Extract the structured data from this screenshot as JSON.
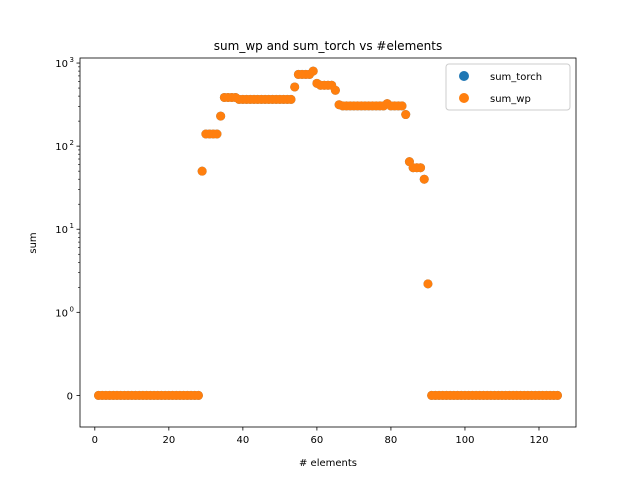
{
  "chart_data": {
    "type": "scatter",
    "title": "sum_wp and sum_torch vs #elements",
    "xlabel": "# elements",
    "ylabel": "sum",
    "xlim": [
      -4,
      130
    ],
    "ylim": [
      -0.38,
      1150
    ],
    "yscale": "symlog",
    "linthresh": 1,
    "x_ticks": [
      0,
      20,
      40,
      60,
      80,
      100,
      120
    ],
    "y_ticks": [
      {
        "value": 0,
        "label": "0"
      },
      {
        "value": 1,
        "label": "10",
        "exp": "0"
      },
      {
        "value": 10,
        "label": "10",
        "exp": "1"
      },
      {
        "value": 100,
        "label": "10",
        "exp": "2"
      },
      {
        "value": 1000,
        "label": "10",
        "exp": "3"
      }
    ],
    "grid": false,
    "legend": "top-right",
    "series": [
      {
        "name": "sum_torch",
        "color": "#1f77b4",
        "x": [
          1,
          2,
          3,
          4,
          5,
          6,
          7,
          8,
          9,
          10,
          11,
          12,
          13,
          14,
          15,
          16,
          17,
          18,
          19,
          20,
          21,
          22,
          23,
          24,
          25,
          26,
          27,
          28,
          29,
          30,
          31,
          32,
          33,
          34,
          35,
          36,
          37,
          38,
          39,
          40,
          41,
          42,
          43,
          44,
          45,
          46,
          47,
          48,
          49,
          50,
          51,
          52,
          53,
          54,
          55,
          56,
          57,
          58,
          59,
          60,
          61,
          62,
          63,
          64,
          65,
          66,
          67,
          68,
          69,
          70,
          71,
          72,
          73,
          74,
          75,
          76,
          77,
          78,
          79,
          80,
          81,
          82,
          83,
          84,
          85,
          86,
          87,
          88,
          89,
          90,
          91,
          92,
          93,
          94,
          95,
          96,
          97,
          98,
          99,
          100,
          101,
          102,
          103,
          104,
          105,
          106,
          107,
          108,
          109,
          110,
          111,
          112,
          113,
          114,
          115,
          116,
          117,
          118,
          119,
          120,
          121,
          122,
          123,
          124,
          125
        ],
        "y": [
          0,
          0,
          0,
          0,
          0,
          0,
          0,
          0,
          0,
          0,
          0,
          0,
          0,
          0,
          0,
          0,
          0,
          0,
          0,
          0,
          0,
          0,
          0,
          0,
          0,
          0,
          0,
          0,
          50,
          140,
          140,
          140,
          140,
          230,
          385,
          385,
          385,
          385,
          365,
          365,
          365,
          365,
          365,
          365,
          365,
          365,
          365,
          365,
          365,
          365,
          365,
          365,
          365,
          515,
          730,
          730,
          730,
          730,
          800,
          570,
          540,
          540,
          540,
          540,
          470,
          315,
          305,
          305,
          305,
          305,
          305,
          305,
          305,
          305,
          305,
          305,
          305,
          305,
          325,
          305,
          305,
          305,
          305,
          240,
          65,
          55,
          55,
          55,
          40,
          2.2,
          0,
          0,
          0,
          0,
          0,
          0,
          0,
          0,
          0,
          0,
          0,
          0,
          0,
          0,
          0,
          0,
          0,
          0,
          0,
          0,
          0,
          0,
          0,
          0,
          0,
          0,
          0,
          0,
          0,
          0,
          0,
          0,
          0,
          0,
          0
        ]
      },
      {
        "name": "sum_wp",
        "color": "#ff7f0e",
        "x": [
          1,
          2,
          3,
          4,
          5,
          6,
          7,
          8,
          9,
          10,
          11,
          12,
          13,
          14,
          15,
          16,
          17,
          18,
          19,
          20,
          21,
          22,
          23,
          24,
          25,
          26,
          27,
          28,
          29,
          30,
          31,
          32,
          33,
          34,
          35,
          36,
          37,
          38,
          39,
          40,
          41,
          42,
          43,
          44,
          45,
          46,
          47,
          48,
          49,
          50,
          51,
          52,
          53,
          54,
          55,
          56,
          57,
          58,
          59,
          60,
          61,
          62,
          63,
          64,
          65,
          66,
          67,
          68,
          69,
          70,
          71,
          72,
          73,
          74,
          75,
          76,
          77,
          78,
          79,
          80,
          81,
          82,
          83,
          84,
          85,
          86,
          87,
          88,
          89,
          90,
          91,
          92,
          93,
          94,
          95,
          96,
          97,
          98,
          99,
          100,
          101,
          102,
          103,
          104,
          105,
          106,
          107,
          108,
          109,
          110,
          111,
          112,
          113,
          114,
          115,
          116,
          117,
          118,
          119,
          120,
          121,
          122,
          123,
          124,
          125
        ],
        "y": [
          0,
          0,
          0,
          0,
          0,
          0,
          0,
          0,
          0,
          0,
          0,
          0,
          0,
          0,
          0,
          0,
          0,
          0,
          0,
          0,
          0,
          0,
          0,
          0,
          0,
          0,
          0,
          0,
          50,
          140,
          140,
          140,
          140,
          230,
          385,
          385,
          385,
          385,
          365,
          365,
          365,
          365,
          365,
          365,
          365,
          365,
          365,
          365,
          365,
          365,
          365,
          365,
          365,
          515,
          730,
          730,
          730,
          730,
          800,
          570,
          540,
          540,
          540,
          540,
          470,
          315,
          305,
          305,
          305,
          305,
          305,
          305,
          305,
          305,
          305,
          305,
          305,
          305,
          325,
          305,
          305,
          305,
          305,
          240,
          65,
          55,
          55,
          55,
          40,
          2.2,
          0,
          0,
          0,
          0,
          0,
          0,
          0,
          0,
          0,
          0,
          0,
          0,
          0,
          0,
          0,
          0,
          0,
          0,
          0,
          0,
          0,
          0,
          0,
          0,
          0,
          0,
          0,
          0,
          0,
          0,
          0,
          0,
          0,
          0,
          0
        ]
      }
    ]
  }
}
